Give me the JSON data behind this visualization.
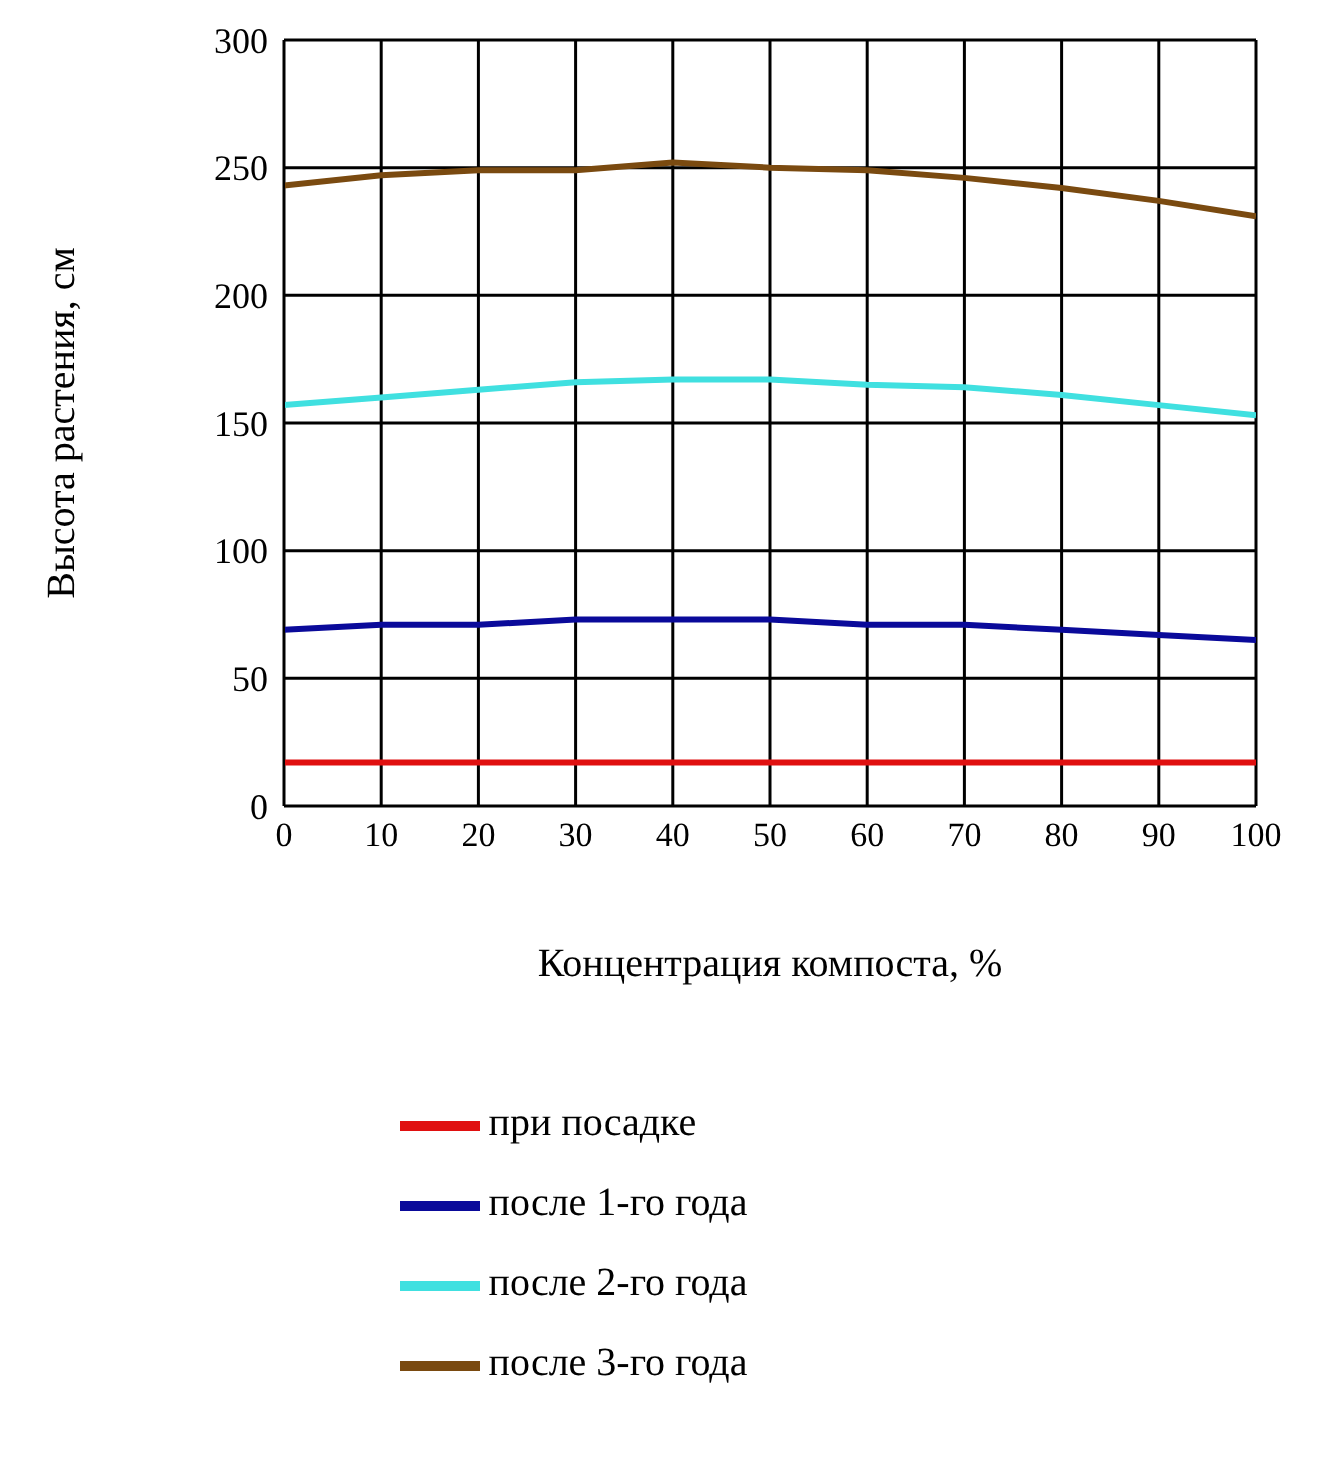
{
  "chart_data": {
    "type": "line",
    "xlabel": "Концентрация компоста, %",
    "ylabel": "Высота растения, см",
    "x": [
      0,
      10,
      20,
      30,
      40,
      50,
      60,
      70,
      80,
      90,
      100
    ],
    "series": [
      {
        "name": "при посадке",
        "color": "#e01010",
        "values": [
          17,
          17,
          17,
          17,
          17,
          17,
          17,
          17,
          17,
          17,
          17
        ]
      },
      {
        "name": "после 1-го года",
        "color": "#0a0a9a",
        "values": [
          69,
          71,
          71,
          73,
          73,
          73,
          71,
          71,
          69,
          67,
          65
        ]
      },
      {
        "name": "после 2-го года",
        "color": "#40e0e0",
        "values": [
          157,
          160,
          163,
          166,
          167,
          167,
          165,
          164,
          161,
          157,
          153
        ]
      },
      {
        "name": "после 3-го года",
        "color": "#7a4a10",
        "values": [
          243,
          247,
          249,
          249,
          252,
          250,
          249,
          246,
          242,
          237,
          231
        ]
      }
    ],
    "xlim": [
      0,
      100
    ],
    "xticks": [
      0,
      10,
      20,
      30,
      40,
      50,
      60,
      70,
      80,
      90,
      100
    ],
    "ylim": [
      0,
      300
    ],
    "yticks": [
      0,
      50,
      100,
      150,
      200,
      250,
      300
    ],
    "grid": true,
    "legend": "bottom",
    "marker": "none",
    "line_style": "solid"
  }
}
